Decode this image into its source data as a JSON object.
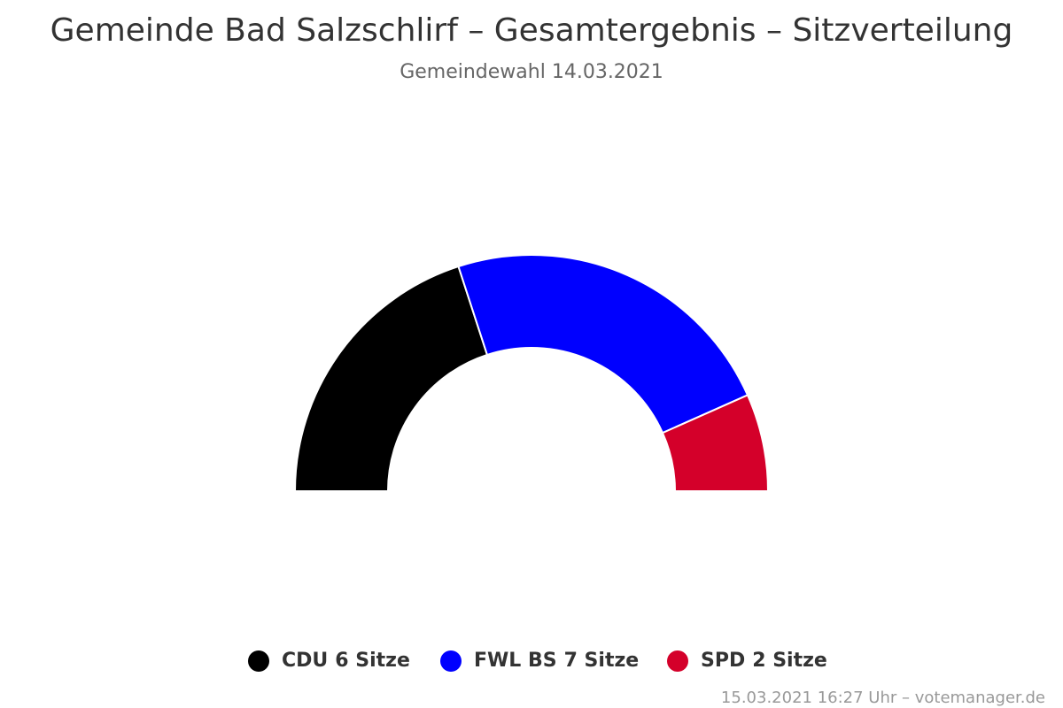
{
  "chart_data": {
    "type": "semi-donut",
    "title": "Gemeinde Bad Salzschlirf – Gesamtergebnis – Sitzverteilung",
    "subtitle": "Gemeindewahl 14.03.2021",
    "categories": [
      "CDU",
      "FWL BS",
      "SPD"
    ],
    "values": [
      6,
      7,
      2
    ],
    "value_labels": [
      "6 Sitze",
      "7 Sitze",
      "2 Sitze"
    ],
    "colors": [
      "#000000",
      "#0000ff",
      "#d4002a"
    ],
    "credit": "15.03.2021 16:27 Uhr – votemanager.de"
  }
}
